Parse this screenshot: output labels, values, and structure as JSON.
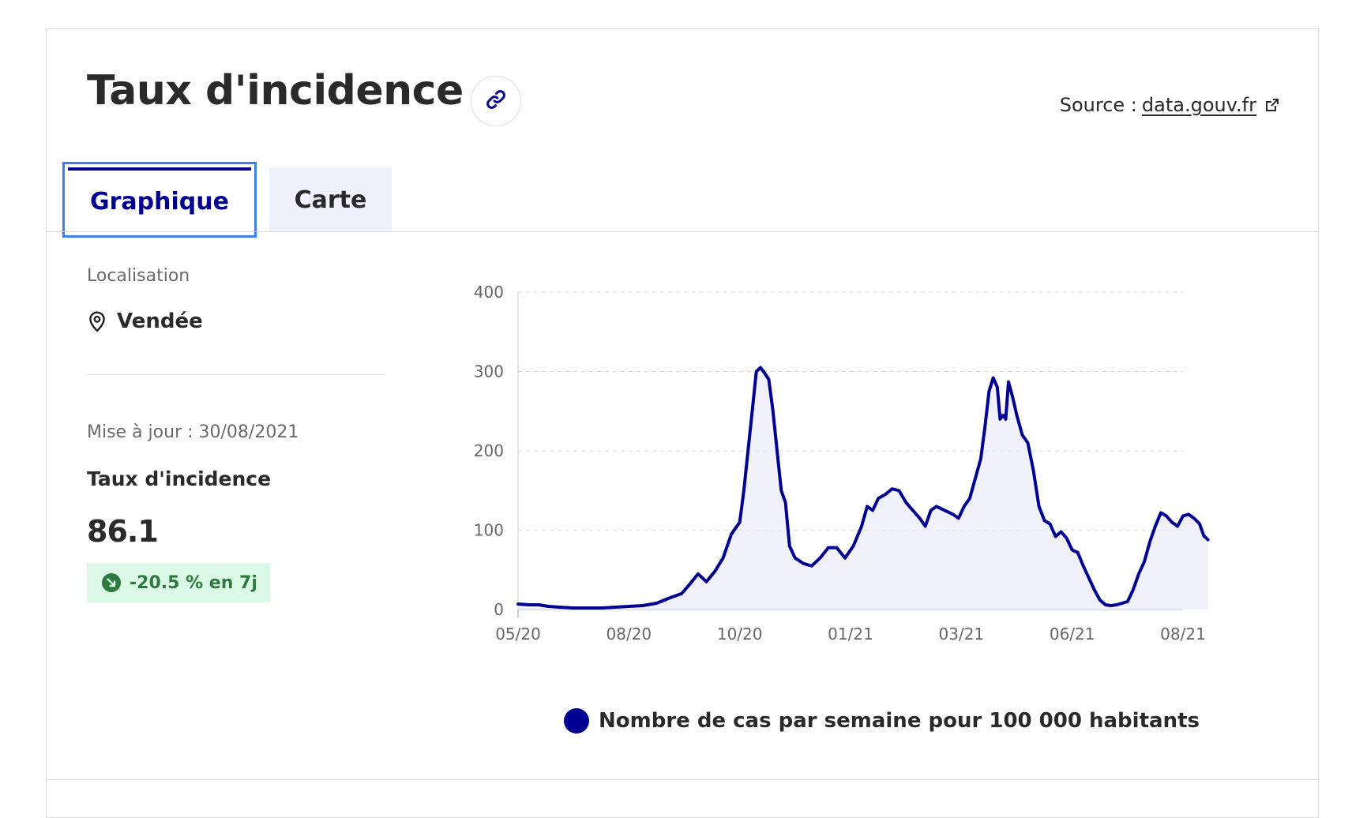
{
  "header": {
    "title": "Taux d'incidence",
    "source_label": "Source :",
    "source_link": "data.gouv.fr"
  },
  "tabs": [
    {
      "label": "Graphique",
      "active": true
    },
    {
      "label": "Carte",
      "active": false
    }
  ],
  "panel": {
    "location_label": "Localisation",
    "location_value": "Vendée",
    "updated": "Mise à jour : 30/08/2021",
    "metric_label": "Taux d'incidence",
    "metric_value": "86.1",
    "change": "-20.5 % en 7j"
  },
  "colors": {
    "accent": "#000091",
    "tab_focus": "#3c7ef0",
    "badge_bg": "#dcf8e6",
    "badge_text": "#2d7a3e"
  },
  "chart_data": {
    "type": "area",
    "x_ticks": [
      "05/20",
      "08/20",
      "10/20",
      "01/21",
      "03/21",
      "06/21",
      "08/21"
    ],
    "y_ticks": [
      0,
      100,
      200,
      300,
      400
    ],
    "ylim": [
      0,
      400
    ],
    "xlim": [
      0,
      480
    ],
    "grid": true,
    "legend_position": "bottom",
    "series": [
      {
        "name": "Nombre de cas par semaine pour 100 000 habitants",
        "color": "#000091",
        "points": [
          [
            0,
            7
          ],
          [
            8,
            6
          ],
          [
            15,
            6
          ],
          [
            22,
            4
          ],
          [
            30,
            3
          ],
          [
            40,
            2
          ],
          [
            50,
            2
          ],
          [
            60,
            2
          ],
          [
            70,
            3
          ],
          [
            80,
            4
          ],
          [
            90,
            5
          ],
          [
            100,
            8
          ],
          [
            110,
            15
          ],
          [
            118,
            20
          ],
          [
            124,
            32
          ],
          [
            130,
            45
          ],
          [
            136,
            35
          ],
          [
            142,
            48
          ],
          [
            148,
            65
          ],
          [
            154,
            95
          ],
          [
            160,
            110
          ],
          [
            163,
            150
          ],
          [
            166,
            200
          ],
          [
            169,
            250
          ],
          [
            172,
            300
          ],
          [
            175,
            305
          ],
          [
            178,
            298
          ],
          [
            181,
            290
          ],
          [
            184,
            250
          ],
          [
            187,
            200
          ],
          [
            190,
            150
          ],
          [
            193,
            135
          ],
          [
            196,
            80
          ],
          [
            200,
            65
          ],
          [
            206,
            58
          ],
          [
            212,
            55
          ],
          [
            218,
            65
          ],
          [
            224,
            78
          ],
          [
            230,
            78
          ],
          [
            236,
            65
          ],
          [
            242,
            80
          ],
          [
            248,
            105
          ],
          [
            252,
            130
          ],
          [
            256,
            125
          ],
          [
            260,
            140
          ],
          [
            265,
            145
          ],
          [
            270,
            152
          ],
          [
            275,
            150
          ],
          [
            280,
            135
          ],
          [
            285,
            125
          ],
          [
            290,
            115
          ],
          [
            294,
            105
          ],
          [
            298,
            125
          ],
          [
            302,
            130
          ],
          [
            308,
            125
          ],
          [
            314,
            120
          ],
          [
            318,
            115
          ],
          [
            322,
            130
          ],
          [
            326,
            140
          ],
          [
            330,
            165
          ],
          [
            334,
            190
          ],
          [
            337,
            230
          ],
          [
            340,
            275
          ],
          [
            343,
            292
          ],
          [
            346,
            280
          ],
          [
            348,
            240
          ],
          [
            350,
            245
          ],
          [
            352,
            240
          ],
          [
            354,
            287
          ],
          [
            357,
            268
          ],
          [
            360,
            245
          ],
          [
            364,
            220
          ],
          [
            368,
            210
          ],
          [
            372,
            175
          ],
          [
            376,
            130
          ],
          [
            380,
            112
          ],
          [
            384,
            108
          ],
          [
            388,
            92
          ],
          [
            392,
            98
          ],
          [
            396,
            90
          ],
          [
            400,
            75
          ],
          [
            404,
            72
          ],
          [
            408,
            55
          ],
          [
            412,
            40
          ],
          [
            416,
            25
          ],
          [
            420,
            12
          ],
          [
            424,
            6
          ],
          [
            428,
            5
          ],
          [
            432,
            6
          ],
          [
            436,
            8
          ],
          [
            440,
            10
          ],
          [
            444,
            25
          ],
          [
            448,
            45
          ],
          [
            452,
            60
          ],
          [
            456,
            85
          ],
          [
            460,
            105
          ],
          [
            464,
            122
          ],
          [
            468,
            118
          ],
          [
            472,
            110
          ],
          [
            476,
            105
          ],
          [
            480,
            118
          ],
          [
            484,
            120
          ],
          [
            488,
            115
          ],
          [
            492,
            108
          ],
          [
            495,
            93
          ],
          [
            498,
            88
          ]
        ]
      }
    ]
  }
}
